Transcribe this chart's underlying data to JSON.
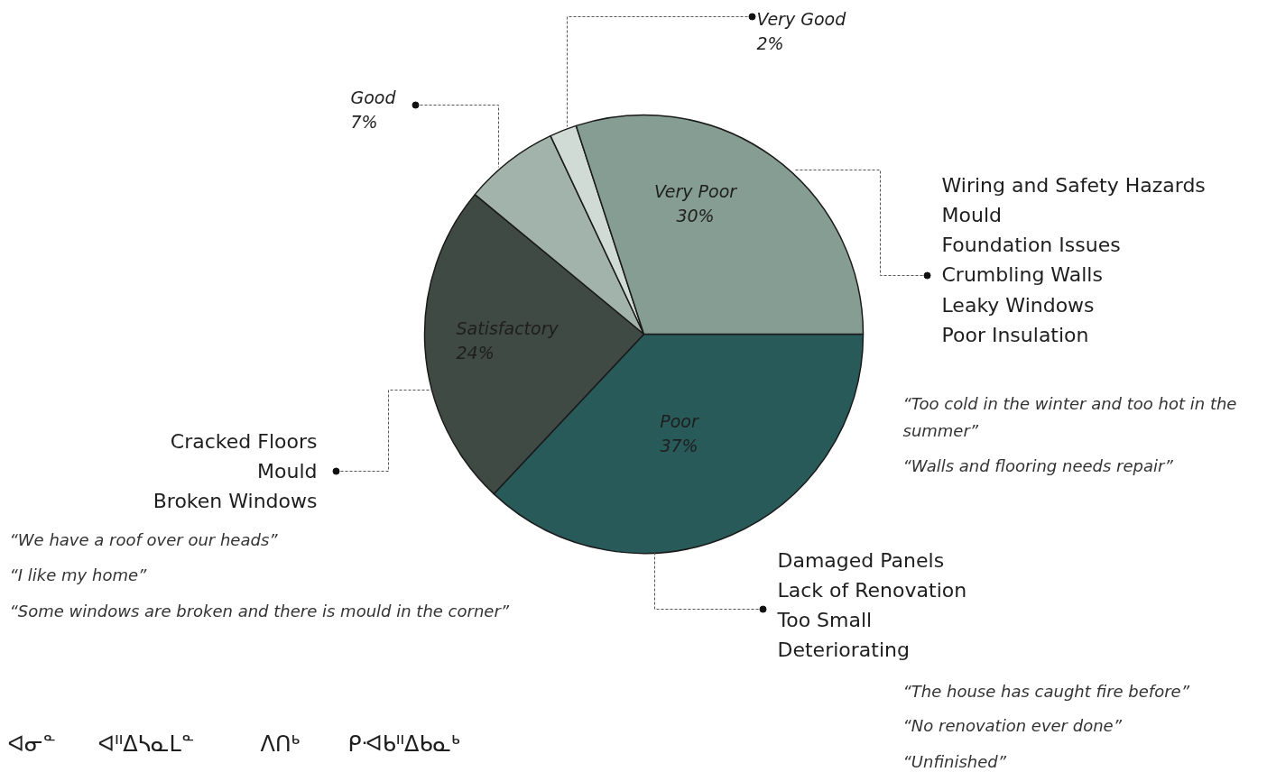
{
  "chart_data": {
    "type": "pie",
    "categories": [
      "Poor",
      "Satisfactory",
      "Good",
      "Very Good",
      "Very Poor"
    ],
    "values": [
      37,
      24,
      7,
      2,
      30
    ],
    "value_labels": [
      "37%",
      "24%",
      "7%",
      "2%",
      "30%"
    ],
    "colors": [
      "#285a5a",
      "#404a45",
      "#a2b3ab",
      "#d0dbd5",
      "#869d94"
    ],
    "annotations": [
      "Wiring and Safety Hazards\nMould\nFoundation Issues\nCrumbling Walls\nLeaky Windows\nPoor Insulation",
      "“Too cold in the winter and too hot in the summer”",
      "“Walls and flooring needs repair”",
      "Cracked Floors\nMould\nBroken Windows",
      "“We have a roof over our heads”",
      "“I like my home”",
      "“Some windows are broken and there is mould in the corner”",
      "Damaged Panels\nLack of Renovation\nToo Small\nDeteriorating",
      "“The house has caught fire before”",
      "“No renovation ever done”",
      "“Unfinished”",
      "ᐊᓂᓐ",
      "ᐊᐦᐃᓴᓇᒪᓐ",
      "ᐱᑎᒃ",
      "ᑭᐗᑲᐦᐃᑲᓇᒃ"
    ]
  }
}
